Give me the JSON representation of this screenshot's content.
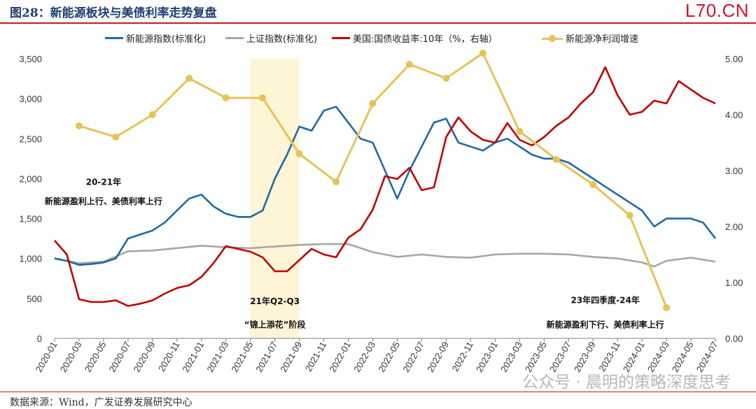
{
  "figure": {
    "title": "图28：新能源板块与美债利率走势复盘",
    "brand": "L70.CN",
    "source": "数据来源：Wind，广发证券发展研究中心",
    "watermark": "公众号 · 晨明的策略深度思考"
  },
  "legend": [
    {
      "name": "新能源指数(标准化)",
      "color": "#1f6aa5",
      "style": "line"
    },
    {
      "name": "上证指数(标准化)",
      "color": "#a6a6a6",
      "style": "line"
    },
    {
      "name": "美国:国债收益率:10年（%，右轴）",
      "color": "#c00000",
      "style": "line"
    },
    {
      "name": "新能源净利润增速",
      "color": "#e6c25a",
      "style": "line-marker"
    }
  ],
  "chart_data": {
    "type": "line",
    "title": "图28：新能源板块与美债利率走势复盘",
    "x_axis": {
      "type": "date",
      "range": [
        "2020-01",
        "2024-07"
      ],
      "tick_labels": [
        "2020-01",
        "2020-03",
        "2020-05",
        "2020-07",
        "2020-09",
        "2020-11",
        "2021-01",
        "2021-03",
        "2021-05",
        "2021-07",
        "2021-09",
        "2021-11",
        "2022-01",
        "2022-03",
        "2022-05",
        "2022-07",
        "2022-09",
        "2022-11",
        "2023-01",
        "2023-03",
        "2023-05",
        "2023-07",
        "2023-09",
        "2023-11",
        "2024-01",
        "2024-03",
        "2024-05",
        "2024-07"
      ]
    },
    "y_left": {
      "range": [
        0,
        3500
      ],
      "tick_labels": [
        "0",
        "500",
        "1,000",
        "1,500",
        "2,000",
        "2,500",
        "3,000",
        "3,500"
      ]
    },
    "y_right": {
      "range": [
        0,
        5.0
      ],
      "tick_labels": [
        "0.00",
        "1.00",
        "2.00",
        "3.00",
        "4.00",
        "5.00"
      ]
    },
    "series": [
      {
        "name": "新能源指数(标准化)",
        "axis": "left",
        "color": "#1f6aa5",
        "x": [
          "2020-01",
          "2020-02",
          "2020-03",
          "2020-04",
          "2020-05",
          "2020-06",
          "2020-07",
          "2020-08",
          "2020-09",
          "2020-10",
          "2020-11",
          "2020-12",
          "2021-01",
          "2021-02",
          "2021-03",
          "2021-04",
          "2021-05",
          "2021-06",
          "2021-07",
          "2021-08",
          "2021-09",
          "2021-10",
          "2021-11",
          "2021-12",
          "2022-01",
          "2022-02",
          "2022-03",
          "2022-04",
          "2022-05",
          "2022-06",
          "2022-07",
          "2022-08",
          "2022-09",
          "2022-10",
          "2022-11",
          "2022-12",
          "2023-01",
          "2023-02",
          "2023-03",
          "2023-04",
          "2023-05",
          "2023-06",
          "2023-07",
          "2023-08",
          "2023-09",
          "2023-10",
          "2023-11",
          "2023-12",
          "2024-01",
          "2024-02",
          "2024-03",
          "2024-04",
          "2024-05",
          "2024-06",
          "2024-07"
        ],
        "values": [
          1000,
          970,
          920,
          930,
          950,
          1000,
          1250,
          1300,
          1350,
          1450,
          1600,
          1750,
          1800,
          1650,
          1560,
          1520,
          1520,
          1600,
          2000,
          2300,
          2650,
          2600,
          2850,
          2900,
          2700,
          2500,
          2450,
          2100,
          1750,
          2100,
          2400,
          2700,
          2750,
          2450,
          2400,
          2350,
          2450,
          2500,
          2400,
          2300,
          2250,
          2250,
          2200,
          2100,
          2000,
          1900,
          1800,
          1700,
          1600,
          1400,
          1500,
          1500,
          1500,
          1450,
          1250
        ]
      },
      {
        "name": "上证指数(标准化)",
        "axis": "left",
        "color": "#a6a6a6",
        "x": [
          "2020-01",
          "2020-03",
          "2020-05",
          "2020-07",
          "2020-09",
          "2020-11",
          "2021-01",
          "2021-03",
          "2021-05",
          "2021-07",
          "2021-09",
          "2021-11",
          "2022-01",
          "2022-03",
          "2022-05",
          "2022-07",
          "2022-09",
          "2022-11",
          "2023-01",
          "2023-03",
          "2023-05",
          "2023-07",
          "2023-09",
          "2023-11",
          "2024-01",
          "2024-02",
          "2024-03",
          "2024-05",
          "2024-07"
        ],
        "values": [
          1000,
          940,
          960,
          1090,
          1100,
          1130,
          1160,
          1140,
          1130,
          1150,
          1170,
          1180,
          1180,
          1080,
          1020,
          1050,
          1020,
          1010,
          1050,
          1060,
          1060,
          1050,
          1020,
          1000,
          950,
          900,
          970,
          1010,
          960
        ]
      },
      {
        "name": "美国:国债收益率:10年（%，右轴）",
        "axis": "right",
        "color": "#c00000",
        "x": [
          "2020-01",
          "2020-02",
          "2020-03",
          "2020-04",
          "2020-05",
          "2020-06",
          "2020-07",
          "2020-08",
          "2020-09",
          "2020-10",
          "2020-11",
          "2020-12",
          "2021-01",
          "2021-02",
          "2021-03",
          "2021-04",
          "2021-05",
          "2021-06",
          "2021-07",
          "2021-08",
          "2021-09",
          "2021-10",
          "2021-11",
          "2021-12",
          "2022-01",
          "2022-02",
          "2022-03",
          "2022-04",
          "2022-05",
          "2022-06",
          "2022-07",
          "2022-08",
          "2022-09",
          "2022-10",
          "2022-11",
          "2022-12",
          "2023-01",
          "2023-02",
          "2023-03",
          "2023-04",
          "2023-05",
          "2023-06",
          "2023-07",
          "2023-08",
          "2023-09",
          "2023-10",
          "2023-11",
          "2023-12",
          "2024-01",
          "2024-02",
          "2024-03",
          "2024-04",
          "2024-05",
          "2024-06",
          "2024-07"
        ],
        "values": [
          1.75,
          1.5,
          0.7,
          0.65,
          0.65,
          0.68,
          0.58,
          0.62,
          0.68,
          0.8,
          0.9,
          0.95,
          1.1,
          1.35,
          1.65,
          1.6,
          1.55,
          1.45,
          1.2,
          1.2,
          1.4,
          1.6,
          1.5,
          1.45,
          1.8,
          1.95,
          2.3,
          2.9,
          2.85,
          3.05,
          2.65,
          2.7,
          3.6,
          3.95,
          3.7,
          3.55,
          3.5,
          3.85,
          3.55,
          3.45,
          3.6,
          3.8,
          3.95,
          4.2,
          4.4,
          4.85,
          4.35,
          4.0,
          4.05,
          4.25,
          4.2,
          4.6,
          4.45,
          4.3,
          4.2
        ]
      },
      {
        "name": "新能源净利润增速",
        "axis": "right",
        "color": "#e6c25a",
        "markers": true,
        "x": [
          "2020-03",
          "2020-06",
          "2020-09",
          "2020-12",
          "2021-03",
          "2021-06",
          "2021-09",
          "2021-12",
          "2022-03",
          "2022-06",
          "2022-09",
          "2022-12",
          "2023-03",
          "2023-06",
          "2023-09",
          "2023-12",
          "2024-03"
        ],
        "values": [
          3.8,
          3.6,
          4.0,
          4.65,
          4.3,
          4.3,
          3.3,
          2.8,
          4.2,
          4.9,
          4.65,
          5.1,
          3.7,
          3.2,
          2.75,
          2.2,
          0.55
        ]
      }
    ],
    "highlight_band": {
      "start": "2021-05",
      "end": "2021-09",
      "color": "#fdf5d6"
    },
    "annotations": [
      {
        "text": "20-21年",
        "x": "2020-05",
        "y_left": 1920
      },
      {
        "text": "新能源盈利上行、美债利率上行",
        "x": "2020-05",
        "y_left": 1680
      },
      {
        "text": "21年Q2-Q3",
        "x": "2021-07",
        "y_left": 430
      },
      {
        "text": "“锦上添花”阶段",
        "x": "2021-07",
        "y_left": 135
      },
      {
        "text": "23年四季度-24年",
        "x": "2023-10",
        "y_left": 440
      },
      {
        "text": "新能源盈利下行、美债利率上行",
        "x": "2023-10",
        "y_left": 135
      }
    ],
    "grid": false,
    "legend_position": "top"
  }
}
